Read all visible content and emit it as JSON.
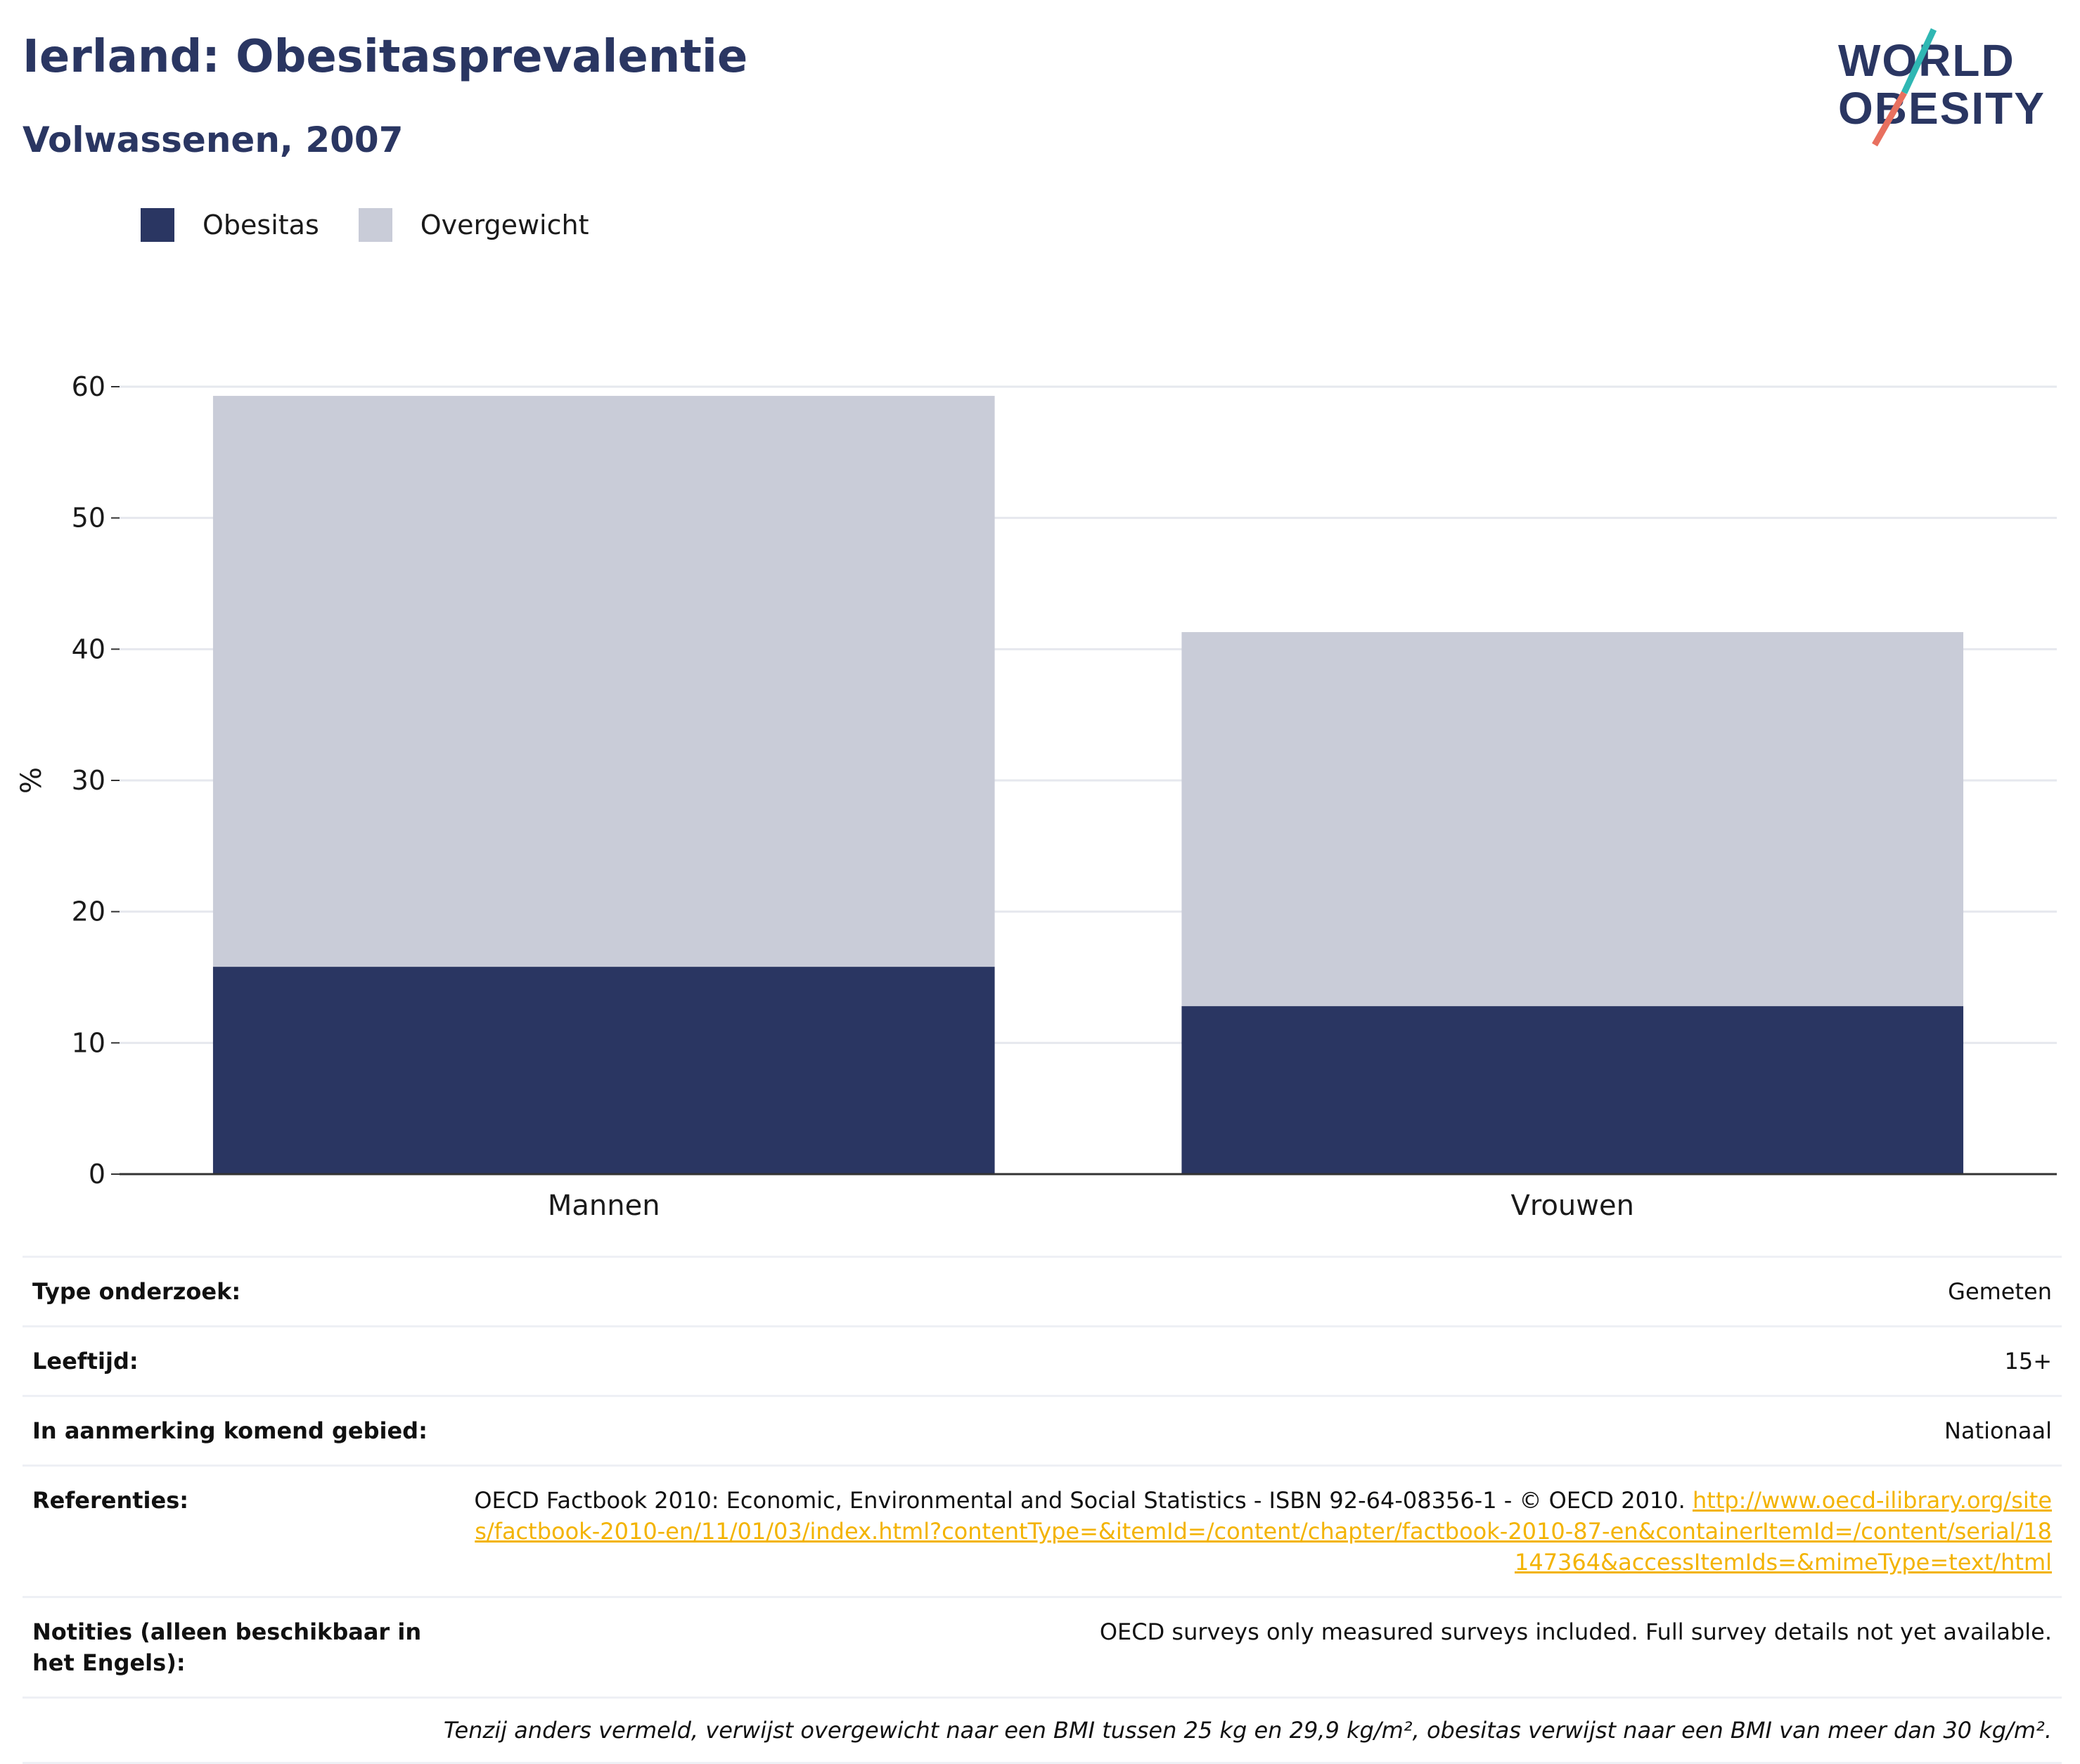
{
  "header": {
    "title": "Ierland: Obesitasprevalentie",
    "subtitle": "Volwassenen, 2007"
  },
  "logo": {
    "line1": "WORLD",
    "line2": "OBESITY"
  },
  "colors": {
    "obesitas": "#2a3662",
    "overgewicht": "#c9ccd8",
    "accent_teal": "#2fb7b3",
    "accent_coral": "#e8705f"
  },
  "chart_data": {
    "type": "bar",
    "stacked": true,
    "categories": [
      "Mannen",
      "Vrouwen"
    ],
    "series": [
      {
        "name": "Obesitas",
        "values": [
          15.8,
          12.8
        ]
      },
      {
        "name": "Overgewicht",
        "values": [
          43.5,
          28.5
        ]
      }
    ],
    "ylabel": "%",
    "ylim": [
      0,
      60
    ],
    "yticks": [
      0,
      10,
      20,
      30,
      40,
      50,
      60
    ],
    "grid": true,
    "legend_position": "top-left"
  },
  "meta": {
    "rows": [
      {
        "label": "Type onderzoek:",
        "value": "Gemeten"
      },
      {
        "label": "Leeftijd:",
        "value": "15+"
      },
      {
        "label": "In aanmerking komend gebied:",
        "value": "Nationaal"
      }
    ],
    "references": {
      "label": "Referenties:",
      "text": "OECD Factbook 2010: Economic, Environmental and Social Statistics - ISBN 92-64-08356-1 - © OECD 2010. ",
      "link": "http://www.oecd-ilibrary.org/sites/factbook-2010-en/11/01/03/index.html?contentType=&itemId=/content/chapter/factbook-2010-87-en&containerItemId=/content/serial/18147364&accessItemIds=&mimeType=text/html"
    },
    "notes": {
      "label": "Notities (alleen beschikbaar in het Engels):",
      "value": "OECD surveys only measured surveys included. Full survey details not yet available."
    },
    "footnote": "Tenzij anders vermeld, verwijst overgewicht naar een BMI tussen 25 kg en 29,9 kg/m², obesitas verwijst naar een BMI van meer dan 30 kg/m²."
  }
}
